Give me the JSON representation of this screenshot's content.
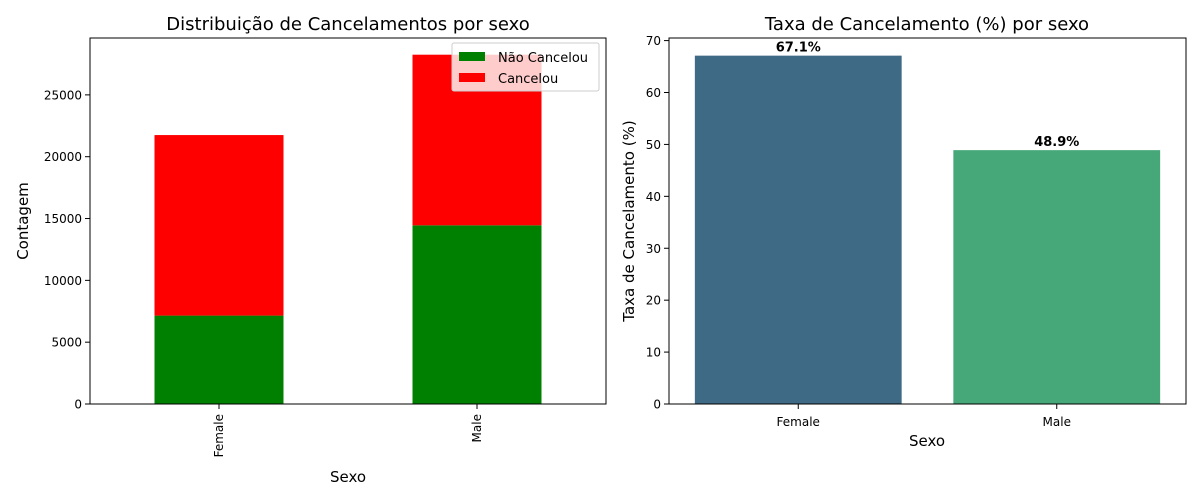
{
  "chart_data": [
    {
      "type": "bar",
      "stacked": true,
      "title": "Distribuição de Cancelamentos por sexo",
      "xlabel": "Sexo",
      "ylabel": "Contagem",
      "categories": [
        "Female",
        "Male"
      ],
      "series": [
        {
          "name": "Não Cancelou",
          "color": "#008000",
          "values": [
            7150,
            14450
          ]
        },
        {
          "name": "Cancelou",
          "color": "#ff0000",
          "values": [
            14600,
            13800
          ]
        }
      ],
      "ylim": [
        0,
        29600
      ],
      "yticks": [
        0,
        5000,
        10000,
        15000,
        20000,
        25000
      ],
      "legend": "top-right",
      "grid": false
    },
    {
      "type": "bar",
      "title": "Taxa de Cancelamento (%) por sexo",
      "xlabel": "Sexo",
      "ylabel": "Taxa de Cancelamento (%)",
      "categories": [
        "Female",
        "Male"
      ],
      "values": [
        67.1,
        48.9
      ],
      "data_labels": [
        "67.1%",
        "48.9%"
      ],
      "colors": [
        "#3f6a86",
        "#46a879"
      ],
      "ylim": [
        0,
        70.5
      ],
      "yticks": [
        0,
        10,
        20,
        30,
        40,
        50,
        60,
        70
      ],
      "grid": false
    }
  ]
}
